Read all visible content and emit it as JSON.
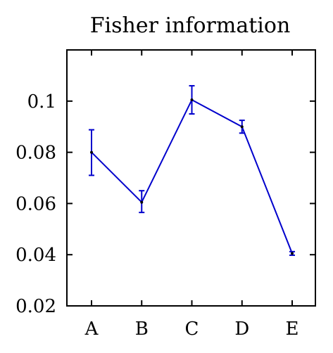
{
  "chart_data": {
    "type": "line",
    "title": "Fisher information",
    "xlabel": "",
    "ylabel": "",
    "categories": [
      "A",
      "B",
      "C",
      "D",
      "E"
    ],
    "series": [
      {
        "values": [
          0.08,
          0.0605,
          0.1005,
          0.09,
          0.0405
        ],
        "error_low": [
          0.071,
          0.0565,
          0.095,
          0.0875,
          0.0398
        ],
        "error_high": [
          0.0888,
          0.065,
          0.106,
          0.0925,
          0.0412
        ],
        "color": "#0000cc"
      }
    ],
    "ylim": [
      0.02,
      0.12
    ],
    "yticks": [
      0.02,
      0.04,
      0.06,
      0.08,
      0.1
    ],
    "ytick_labels": [
      "0.02",
      "0.04",
      "0.06",
      "0.08",
      "0.1"
    ],
    "grid": false,
    "legend": "none"
  }
}
